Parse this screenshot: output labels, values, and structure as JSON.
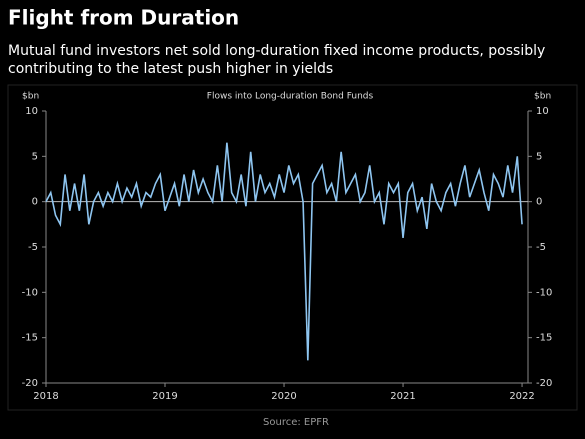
{
  "chart_data": {
    "type": "line",
    "title": "Flight from Duration",
    "subtitle": " Mutual fund investors net sold long-duration fixed income products, possibly contributing to the latest push higher in yields",
    "inner_title": "Flows into Long-duration  Bond Funds",
    "y_label": "$bn",
    "y2_label": "$bn",
    "source": "Source: EPFR",
    "x": [
      2018,
      2018.04,
      2018.08,
      2018.12,
      2018.16,
      2018.2,
      2018.24,
      2018.28,
      2018.32,
      2018.36,
      2018.4,
      2018.44,
      2018.48,
      2018.52,
      2018.56,
      2018.6,
      2018.64,
      2018.68,
      2018.72,
      2018.76,
      2018.8,
      2018.84,
      2018.88,
      2018.92,
      2018.96,
      2019,
      2019.04,
      2019.08,
      2019.12,
      2019.16,
      2019.2,
      2019.24,
      2019.28,
      2019.32,
      2019.36,
      2019.4,
      2019.44,
      2019.48,
      2019.52,
      2019.56,
      2019.6,
      2019.64,
      2019.68,
      2019.72,
      2019.76,
      2019.8,
      2019.84,
      2019.88,
      2019.92,
      2019.96,
      2020,
      2020.04,
      2020.08,
      2020.12,
      2020.16,
      2020.2,
      2020.24,
      2020.28,
      2020.32,
      2020.36,
      2020.4,
      2020.44,
      2020.48,
      2020.52,
      2020.56,
      2020.6,
      2020.64,
      2020.68,
      2020.72,
      2020.76,
      2020.8,
      2020.84,
      2020.88,
      2020.92,
      2020.96,
      2021,
      2021.04,
      2021.08,
      2021.12,
      2021.16,
      2021.2,
      2021.24,
      2021.28,
      2021.32,
      2021.36,
      2021.4,
      2021.44,
      2021.48,
      2021.52,
      2021.56,
      2021.6,
      2021.64,
      2021.68,
      2021.72,
      2021.76,
      2021.8,
      2021.84,
      2021.88,
      2021.92,
      2021.96,
      2022
    ],
    "series": [
      {
        "color": "#8ec5f0",
        "values": [
          0,
          1,
          -1.5,
          -2.5,
          3,
          -1,
          2,
          -1,
          3,
          -2.5,
          0,
          1,
          -0.5,
          1,
          0,
          2,
          0,
          1.5,
          0.5,
          2,
          -0.5,
          1,
          0.5,
          2,
          3,
          -1,
          0.5,
          2,
          -0.5,
          3,
          0,
          3.5,
          1,
          2.5,
          1,
          0,
          4,
          0,
          6.5,
          1,
          0,
          3,
          -0.5,
          5.5,
          0,
          3,
          1,
          2,
          0.5,
          3,
          1,
          4,
          2,
          3,
          0,
          -17.5,
          2,
          3,
          4,
          1,
          2,
          0,
          5.5,
          1,
          2,
          3,
          0,
          1,
          4,
          0,
          1,
          -2.5,
          2,
          1,
          2,
          -4,
          1,
          2,
          -1,
          0.5,
          -3,
          2,
          0,
          -1,
          1,
          2,
          -0.5,
          2,
          4,
          0.5,
          2,
          3.5,
          1,
          -1,
          3,
          2,
          0.5,
          4,
          1,
          5,
          -2.5
        ]
      }
    ],
    "xlim": [
      2018,
      2022.05
    ],
    "xticks": [
      2018,
      2019,
      2020,
      2021,
      2022
    ],
    "ylim": [
      -20,
      10
    ],
    "yticks": [
      10,
      5,
      0,
      -5,
      -10,
      -15,
      -20
    ],
    "y2lim": [
      -20,
      10
    ],
    "y2ticks": [
      10,
      5,
      0,
      -5,
      -10,
      -15,
      -20
    ]
  }
}
